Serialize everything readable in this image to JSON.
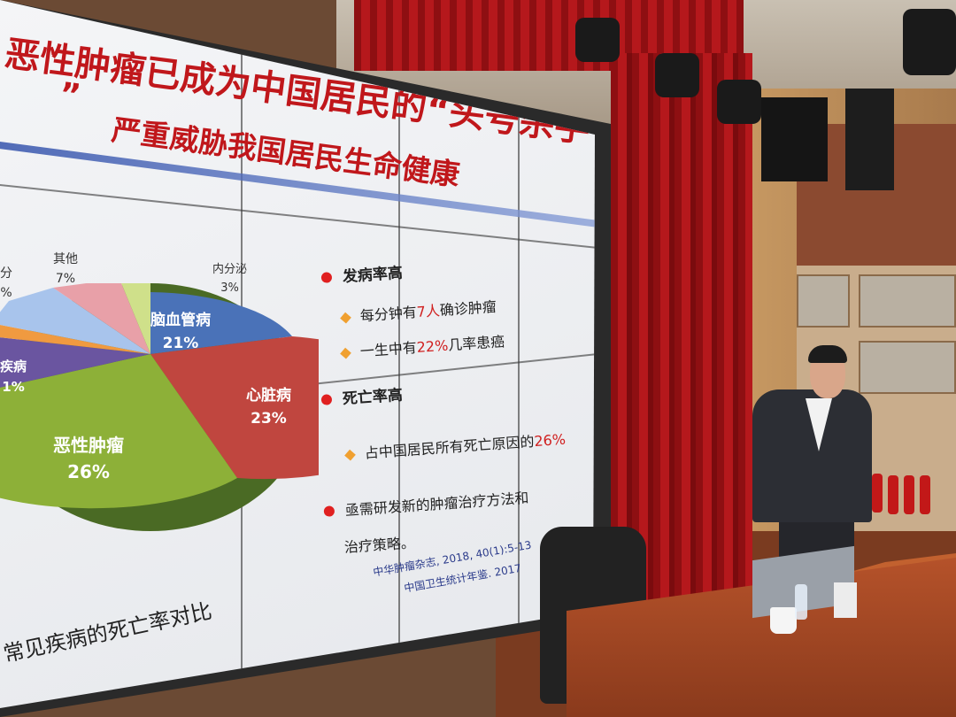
{
  "slide": {
    "title_line1": "恶性肿瘤已成为中国居民的“头号杀手",
    "title_line1_tail": "”",
    "title_line2": "严重威胁我国居民生命健康",
    "pie": {
      "slices": [
        {
          "label": "脑血管病",
          "value": "21%",
          "color": "#4a72b8"
        },
        {
          "label": "心脏病",
          "value": "23%",
          "color": "#c0463f"
        },
        {
          "label": "恶性肿瘤",
          "value": "26%",
          "color": "#8db038"
        },
        {
          "label": "疾病",
          "value": "1%",
          "color": "#6a55a0"
        },
        {
          "label": "其他",
          "value": "7%",
          "color": "#e8a0a8"
        },
        {
          "label": "内分泌",
          "value": "3%",
          "color": "#cfe08a"
        }
      ],
      "partial_label": "分",
      "partial_value": "%"
    },
    "bullets": [
      {
        "heading": "发病率高",
        "items": [
          {
            "pre": "每分钟有",
            "hl": "7人",
            "post": "确诊肿瘤"
          },
          {
            "pre": "一生中有",
            "hl": "22%",
            "post": "几率患癌"
          }
        ]
      },
      {
        "heading": "死亡率高",
        "items": [
          {
            "pre": "占中国居民所有死亡原因的",
            "hl": "26%",
            "post": ""
          }
        ]
      },
      {
        "heading": "亟需研发新的肿瘤治疗方法和",
        "continuation": "治疗策略。",
        "items": []
      }
    ],
    "sources": [
      "中华肿瘤杂志, 2018, 40(1):5-13",
      "中国卫生统计年鉴. 2017"
    ],
    "caption": "常见疾病的死亡率对比"
  }
}
